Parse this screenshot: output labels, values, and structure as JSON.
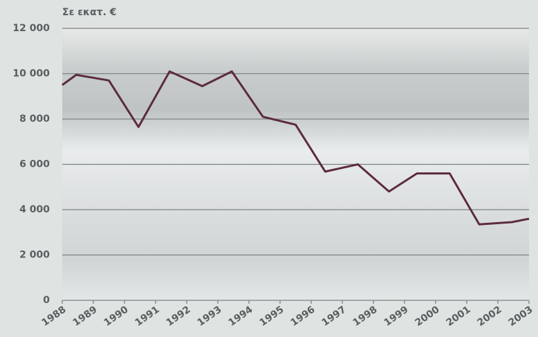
{
  "chart_data": {
    "type": "line",
    "ylabel": "Σε εκατ. €",
    "x": [
      1988,
      1988.45,
      1989.5,
      1990.45,
      1991.45,
      1992.5,
      1993.45,
      1994.45,
      1995.5,
      1996.45,
      1997.5,
      1998.5,
      1999.4,
      2000.45,
      2001.4,
      2002.45,
      2003
    ],
    "series": [
      {
        "name": "Σε εκατ. €",
        "color": "#5c2b3e",
        "values": [
          9500,
          9950,
          9700,
          7650,
          10100,
          9450,
          10100,
          8100,
          7750,
          5680,
          6000,
          4800,
          5600,
          5600,
          3350,
          3450,
          3600
        ]
      }
    ],
    "xlim": [
      1988,
      2003
    ],
    "xticks": [
      1988,
      1989,
      1990,
      1991,
      1992,
      1993,
      1994,
      1995,
      1996,
      1997,
      1998,
      1999,
      2000,
      2001,
      2002,
      2003
    ],
    "ylim": [
      0,
      12000
    ],
    "yticks": [
      0,
      {
        "value": 2000,
        "label": "2 000"
      },
      {
        "value": 4000,
        "label": "4 000"
      },
      {
        "value": 6000,
        "label": "6 000"
      },
      {
        "value": 8000,
        "label": "8 000"
      },
      {
        "value": 10000,
        "label": "10 000"
      },
      {
        "value": 12000,
        "label": "12 000"
      }
    ],
    "grid": true
  }
}
